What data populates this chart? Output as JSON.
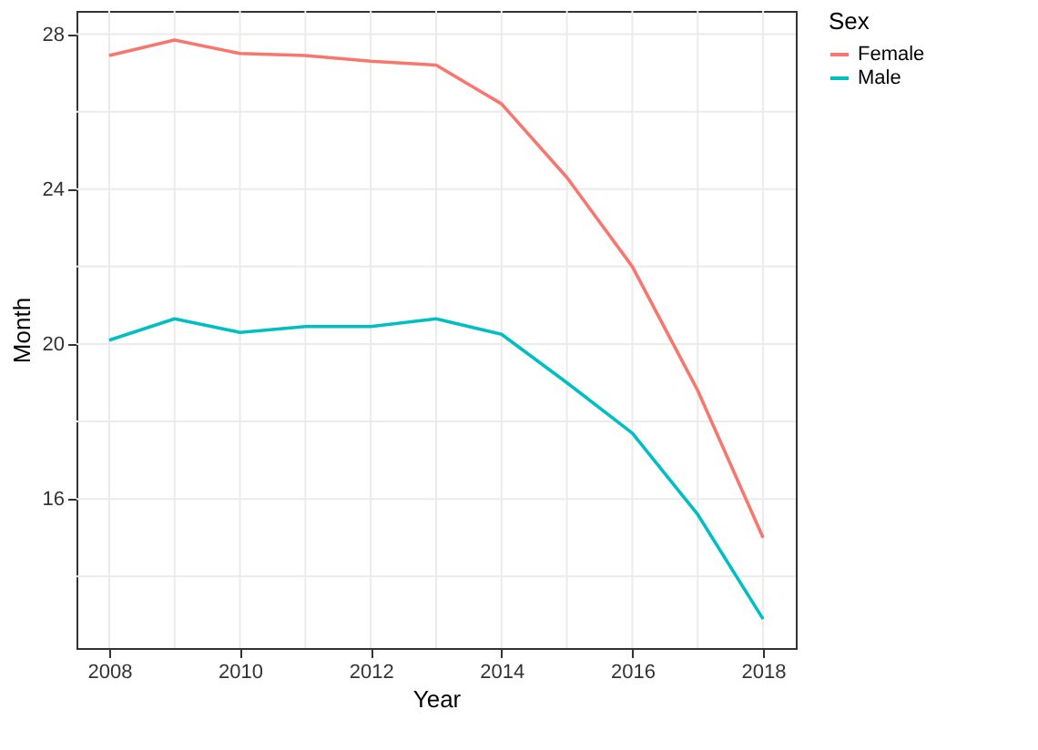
{
  "chart_data": {
    "type": "line",
    "xlabel": "Year",
    "ylabel": "Month",
    "legend_title": "Sex",
    "legend": "right",
    "grid": true,
    "x": [
      2008,
      2009,
      2010,
      2011,
      2012,
      2013,
      2014,
      2015,
      2016,
      2017,
      2018
    ],
    "series": [
      {
        "name": "Female",
        "color": "#f8766d",
        "values": [
          27.45,
          27.85,
          27.5,
          27.45,
          27.3,
          27.2,
          26.2,
          24.3,
          22.0,
          18.8,
          15.0
        ]
      },
      {
        "name": "Male",
        "color": "#00bfc4",
        "values": [
          20.1,
          20.65,
          20.3,
          20.45,
          20.45,
          20.65,
          20.25,
          19.0,
          17.7,
          15.6,
          12.9
        ]
      }
    ],
    "xlim": [
      2007.5,
      2018.5
    ],
    "ylim": [
      12.15,
      28.6
    ],
    "xticks": [
      2008,
      {
        "value": 2009,
        "label": null
      },
      2010,
      {
        "value": 2011,
        "label": null
      },
      2012,
      {
        "value": 2013,
        "label": null
      },
      2014,
      {
        "value": 2015,
        "label": null
      },
      2016,
      {
        "value": 2017,
        "label": null
      },
      2018
    ],
    "yticks": [
      {
        "value": 14,
        "label": null
      },
      16,
      {
        "value": 18,
        "label": null
      },
      20,
      {
        "value": 22,
        "label": null
      },
      24,
      {
        "value": 26,
        "label": null
      },
      28
    ]
  }
}
